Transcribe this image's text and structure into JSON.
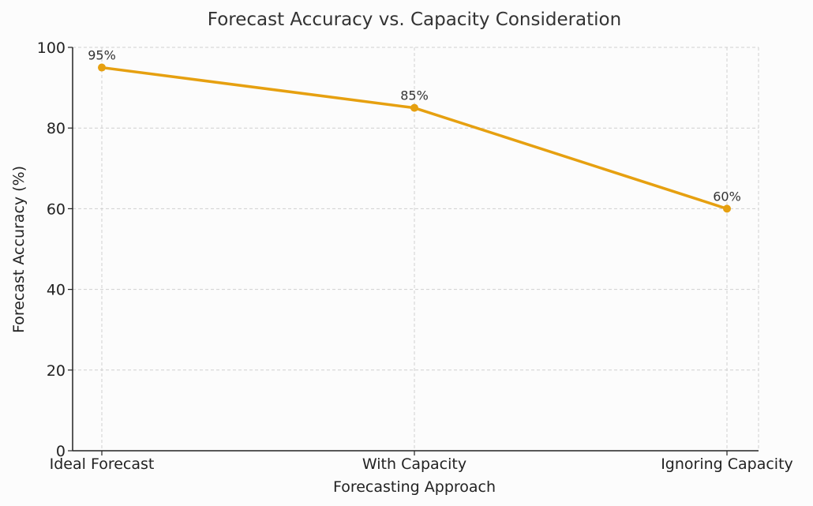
{
  "chart_data": {
    "type": "line",
    "title": "Forecast Accuracy vs. Capacity Consideration",
    "xlabel": "Forecasting Approach",
    "ylabel": "Forecast Accuracy (%)",
    "categories": [
      "Ideal Forecast",
      "With Capacity",
      "Ignoring Capacity"
    ],
    "series": [
      {
        "values": [
          95,
          85,
          60
        ],
        "labels": [
          "95%",
          "85%",
          "60%"
        ],
        "color": "#e6a010"
      }
    ],
    "ylim": [
      0,
      100
    ],
    "yticks": [
      0,
      20,
      40,
      60,
      80,
      100
    ],
    "grid": true,
    "markers": true
  }
}
